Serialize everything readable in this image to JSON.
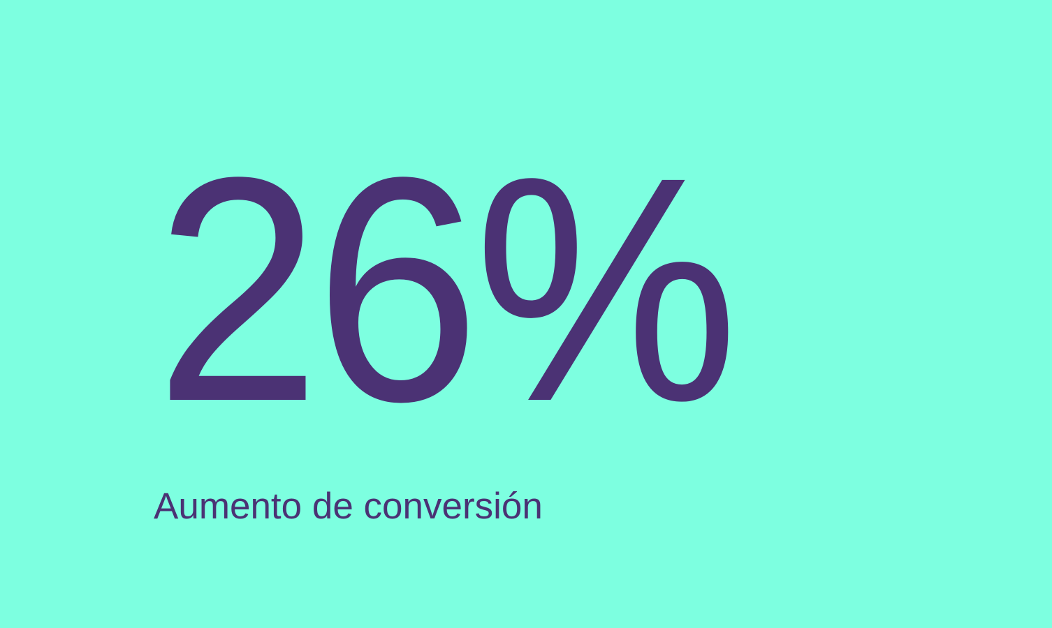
{
  "stat": {
    "value": "26%",
    "label": "Aumento de conversión"
  },
  "colors": {
    "background": "#7DFFE0",
    "text": "#4B3274"
  }
}
